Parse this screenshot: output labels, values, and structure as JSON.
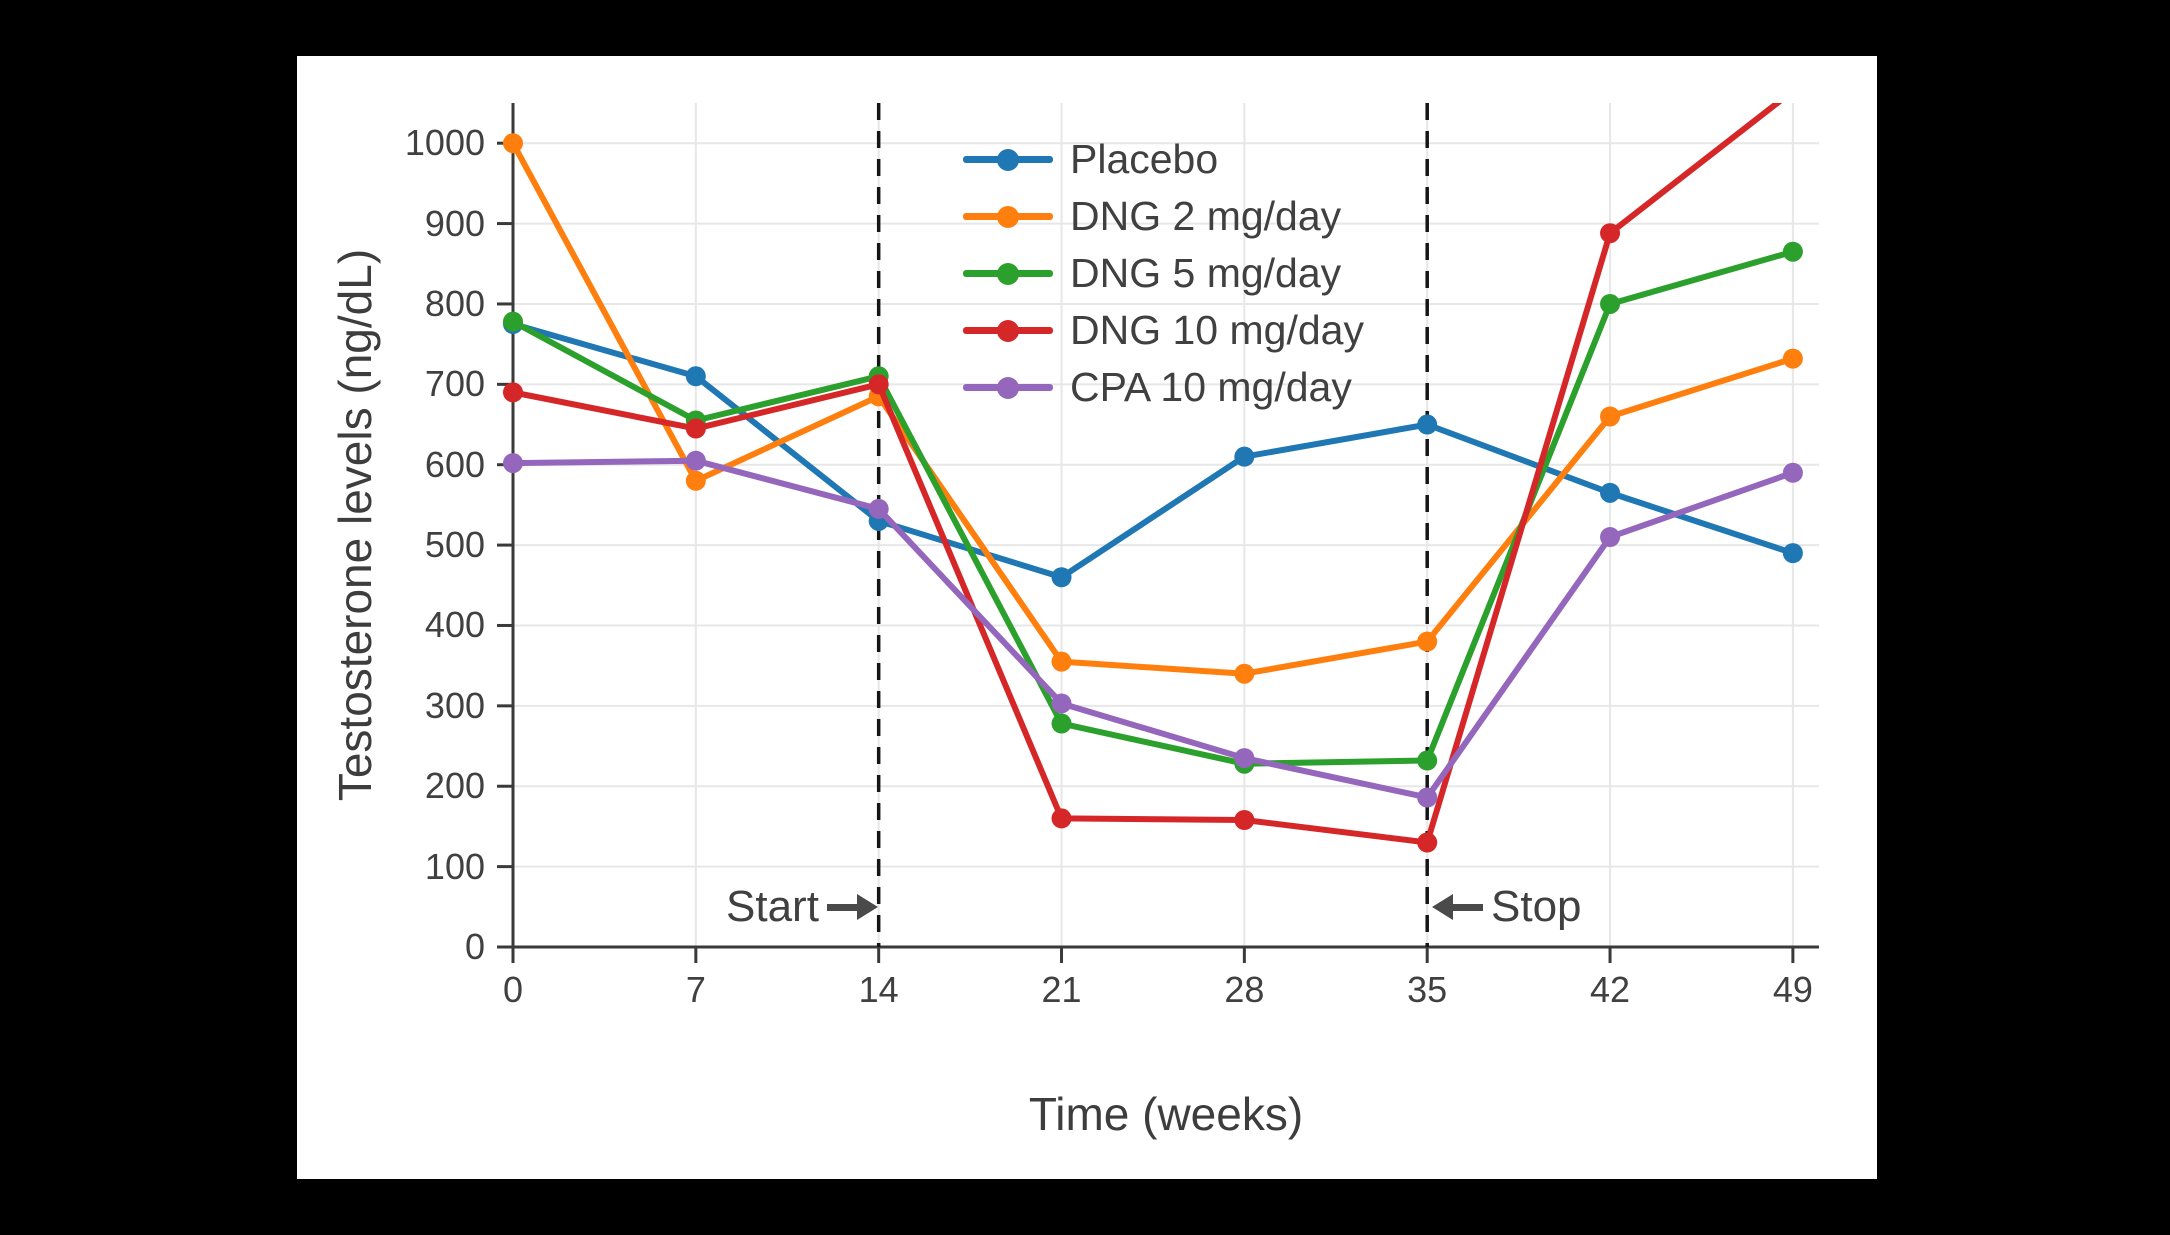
{
  "chart_data": {
    "type": "line",
    "title": "",
    "xlabel": "Time (weeks)",
    "ylabel": "Testosterone levels (ng/dL)",
    "x": [
      0,
      7,
      14,
      21,
      28,
      35,
      42,
      49
    ],
    "xticks": [
      "0",
      "7",
      "14",
      "21",
      "28",
      "35",
      "42",
      "49"
    ],
    "yticks": [
      "0",
      "100",
      "200",
      "300",
      "400",
      "500",
      "600",
      "700",
      "800",
      "900",
      "1000"
    ],
    "xlim": [
      0,
      50
    ],
    "ylim": [
      0,
      1050
    ],
    "grid": true,
    "legend_position": "upper center-left, no frame",
    "series": [
      {
        "name": "Placebo",
        "color": "#1f77b4",
        "values": [
          775,
          710,
          530,
          460,
          610,
          650,
          565,
          490
        ]
      },
      {
        "name": "DNG 2 mg/day",
        "color": "#ff7f0e",
        "values": [
          1000,
          580,
          685,
          355,
          340,
          380,
          660,
          732
        ]
      },
      {
        "name": "DNG 5 mg/day",
        "color": "#2ca02c",
        "values": [
          778,
          655,
          710,
          278,
          228,
          232,
          800,
          865
        ]
      },
      {
        "name": "DNG 10 mg/day",
        "color": "#d62728",
        "values": [
          690,
          645,
          700,
          160,
          158,
          130,
          888,
          1065
        ]
      },
      {
        "name": "CPA 10 mg/day",
        "color": "#9467bd",
        "values": [
          602,
          605,
          545,
          303,
          235,
          186,
          510,
          590
        ]
      }
    ],
    "annotations": [
      {
        "text": "Start",
        "arrow": "right",
        "x_week": 14,
        "y_value": 50
      },
      {
        "text": "Stop",
        "arrow": "left",
        "x_week": 35,
        "y_value": 50
      }
    ],
    "treatment_window_weeks": [
      14,
      35
    ]
  },
  "style_colors": {
    "figure_background": "#ffffff",
    "page_background": "#000000",
    "gridline": "#e7e7e7",
    "spine": "#3a3a3a",
    "tick_mark": "#3a3a3a",
    "text": "#404040",
    "dashed_line": "#151515",
    "arrow": "#4a4a4a"
  }
}
